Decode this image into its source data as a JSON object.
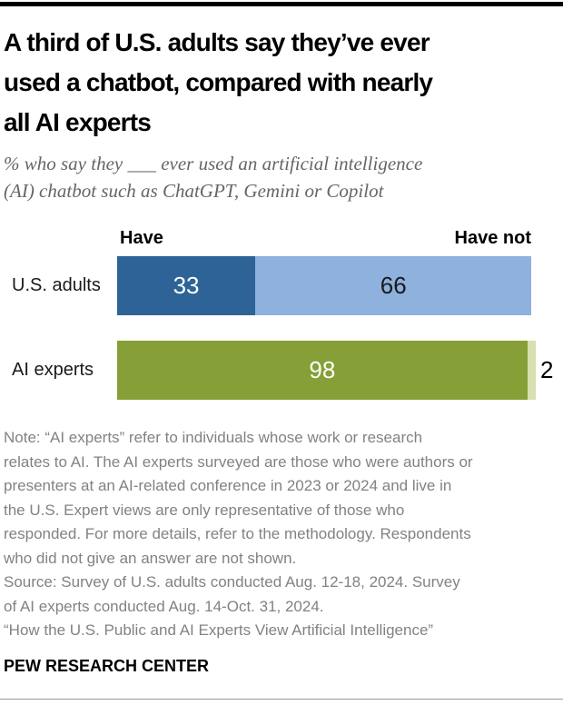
{
  "header": {
    "title_lines": [
      "A third of U.S. adults say they’ve ever",
      "used a chatbot, compared with nearly",
      "all AI experts"
    ],
    "subtitle_lines": [
      "% who say they ___ ever used an artificial intelligence",
      "(AI) chatbot such as ChatGPT, Gemini or Copilot"
    ]
  },
  "chart_data": {
    "type": "bar",
    "orientation": "horizontal",
    "stacked": true,
    "title": "A third of U.S. adults say they’ve ever used a chatbot, compared with nearly all AI experts",
    "subtitle": "% who say they ___ ever used an artificial intelligence (AI) chatbot such as ChatGPT, Gemini or Copilot",
    "series_labels": [
      "Have",
      "Have not"
    ],
    "categories": [
      "U.S. adults",
      "AI experts"
    ],
    "axis_range": [
      0,
      100
    ],
    "grid": false,
    "legend_position": "above-bars",
    "rows": [
      {
        "label": "U.S. adults",
        "segments": [
          {
            "name": "Have",
            "value": 33,
            "color": "#2d6396",
            "label_color": "#ffffff"
          },
          {
            "name": "Have not",
            "value": 66,
            "color": "#8eb1dd",
            "label_color": "#1a1a1a"
          }
        ]
      },
      {
        "label": "AI experts",
        "segments": [
          {
            "name": "Have",
            "value": 98,
            "color": "#869f36",
            "label_color": "#ffffff"
          },
          {
            "name": "Have not",
            "value": 2,
            "color": "#d8dfb1",
            "label_color": "#000000",
            "label_placement": "outside"
          }
        ]
      }
    ]
  },
  "notes": {
    "note_lines": [
      "Note: “AI experts” refer to individuals whose work or research",
      "relates to AI. The AI experts surveyed are those who were authors or",
      "presenters at an AI-related conference in 2023 or 2024 and live in",
      "the U.S. Expert views are only representative of those who",
      "responded. For more details, refer to the methodology. Respondents",
      "who did not give an answer are not shown.",
      "Source: Survey of U.S. adults conducted Aug. 12-18, 2024. Survey",
      "of AI experts conducted Aug. 14-Oct. 31, 2024.",
      "“How the U.S. Public and AI Experts View Artificial Intelligence”"
    ]
  },
  "brand": {
    "footer": "PEW RESEARCH CENTER"
  },
  "colors": {
    "have_us_adults": "#2d6396",
    "have_not_us_adults": "#8eb1dd",
    "have_ai_experts": "#869f36",
    "have_not_ai_experts": "#d8dfb1",
    "top_rule": "#000000",
    "bottom_rule": "#999999",
    "note_text": "#808285",
    "subtitle_text": "#666666"
  }
}
